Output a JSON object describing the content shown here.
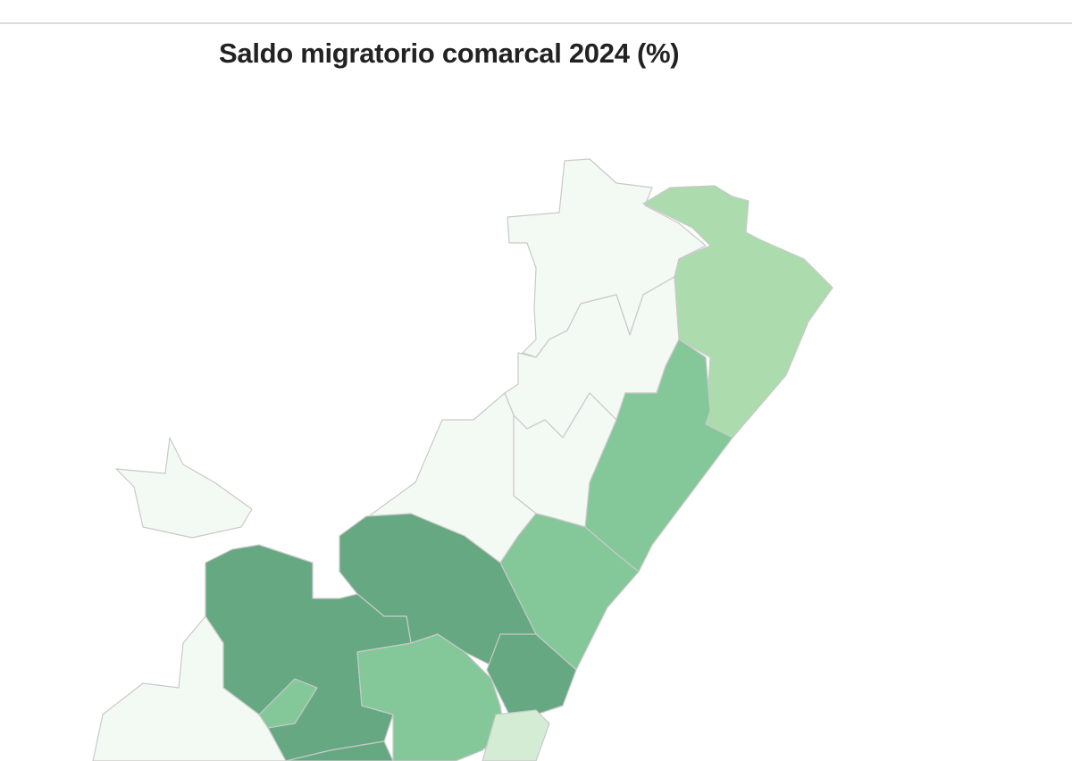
{
  "title": "Saldo migratorio comarcal 2024 (%)"
}
